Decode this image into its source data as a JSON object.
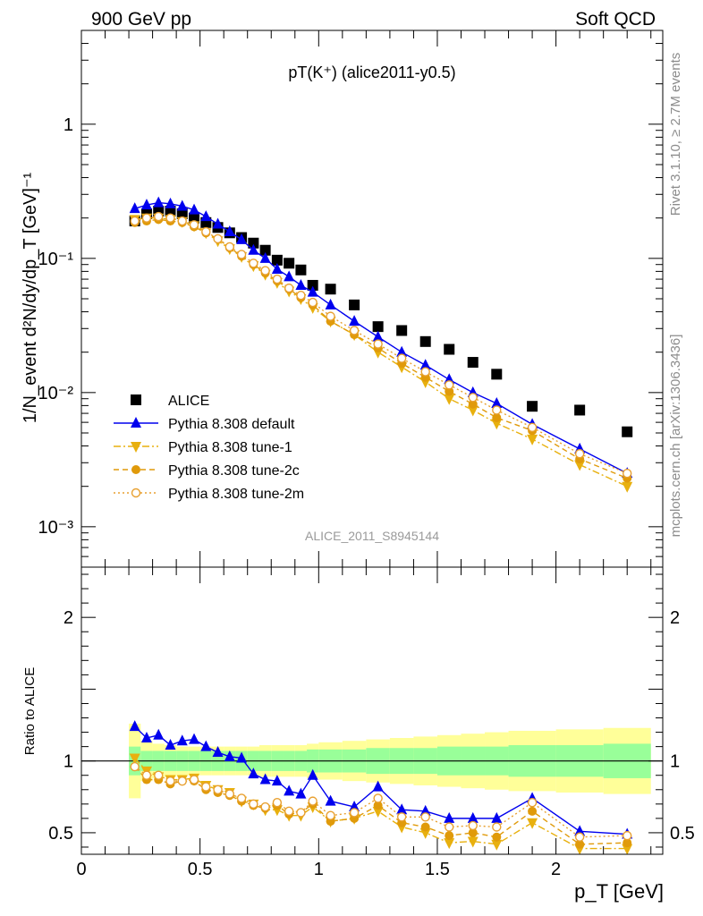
{
  "header": {
    "left": "900 GeV pp",
    "right": "Soft QCD"
  },
  "side_labels": {
    "rivet": "Rivet 3.1.10, ≥ 2.7M events",
    "mcplots": "mcplots.cern.ch [arXiv:1306.3436]"
  },
  "chart_data": [
    {
      "type": "scatter",
      "panel": "main",
      "title": "pT(K⁺) (alice2011-y0.5)",
      "watermark": "ALICE_2011_S8945144",
      "ylabel": "1/N_event d²N/dy/dp_T [GeV]⁻¹",
      "xlabel": "p_T [GeV]",
      "yscale": "log",
      "ylim": [
        0.0005,
        5
      ],
      "xlim": [
        0,
        2.45
      ],
      "y_tick_labels": [
        "10⁻³",
        "10⁻²",
        "10⁻¹",
        "1"
      ],
      "x_tick_labels": [
        "0",
        "0.5",
        "1",
        "1.5",
        "2"
      ],
      "legend_position": "bottom-left",
      "series": [
        {
          "name": "ALICE",
          "color": "#000000",
          "marker": "square",
          "x": [
            0.225,
            0.275,
            0.325,
            0.375,
            0.425,
            0.475,
            0.525,
            0.575,
            0.625,
            0.675,
            0.725,
            0.775,
            0.825,
            0.875,
            0.925,
            0.975,
            1.05,
            1.15,
            1.25,
            1.35,
            1.45,
            1.55,
            1.65,
            1.75,
            1.9,
            2.1,
            2.3
          ],
          "y": [
            0.19,
            0.215,
            0.225,
            0.225,
            0.215,
            0.2,
            0.185,
            0.17,
            0.155,
            0.143,
            0.13,
            0.115,
            0.097,
            0.092,
            0.082,
            0.063,
            0.059,
            0.045,
            0.031,
            0.029,
            0.024,
            0.021,
            0.0168,
            0.0137,
            0.0079,
            0.0074,
            0.0051
          ]
        },
        {
          "name": "Pythia 8.308 default",
          "color": "#0000ee",
          "marker": "triangle-up",
          "line": "solid",
          "x": [
            0.225,
            0.275,
            0.325,
            0.375,
            0.425,
            0.475,
            0.525,
            0.575,
            0.625,
            0.675,
            0.725,
            0.775,
            0.825,
            0.875,
            0.925,
            0.975,
            1.05,
            1.15,
            1.25,
            1.35,
            1.45,
            1.55,
            1.65,
            1.75,
            1.9,
            2.1,
            2.3
          ],
          "y": [
            0.235,
            0.25,
            0.26,
            0.255,
            0.245,
            0.23,
            0.205,
            0.18,
            0.158,
            0.138,
            0.115,
            0.1,
            0.083,
            0.073,
            0.063,
            0.056,
            0.045,
            0.034,
            0.026,
            0.02,
            0.016,
            0.0125,
            0.01,
            0.0083,
            0.0058,
            0.0038,
            0.0025
          ]
        },
        {
          "name": "Pythia 8.308 tune-1",
          "color": "#e8b00e",
          "marker": "triangle-down",
          "line": "dash-dot",
          "x": [
            0.225,
            0.275,
            0.325,
            0.375,
            0.425,
            0.475,
            0.525,
            0.575,
            0.625,
            0.675,
            0.725,
            0.775,
            0.825,
            0.875,
            0.925,
            0.975,
            1.05,
            1.15,
            1.25,
            1.35,
            1.45,
            1.55,
            1.65,
            1.75,
            1.9,
            2.1,
            2.3
          ],
          "y": [
            0.195,
            0.2,
            0.2,
            0.195,
            0.188,
            0.175,
            0.155,
            0.135,
            0.118,
            0.103,
            0.088,
            0.076,
            0.066,
            0.057,
            0.05,
            0.043,
            0.034,
            0.027,
            0.02,
            0.0155,
            0.012,
            0.009,
            0.0074,
            0.0059,
            0.0045,
            0.0029,
            0.002
          ]
        },
        {
          "name": "Pythia 8.308 tune-2c",
          "color": "#e09a0a",
          "marker": "circle",
          "line": "dashed",
          "x": [
            0.225,
            0.275,
            0.325,
            0.375,
            0.425,
            0.475,
            0.525,
            0.575,
            0.625,
            0.675,
            0.725,
            0.775,
            0.825,
            0.875,
            0.925,
            0.975,
            1.05,
            1.15,
            1.25,
            1.35,
            1.45,
            1.55,
            1.65,
            1.75,
            1.9,
            2.1,
            2.3
          ],
          "y": [
            0.185,
            0.19,
            0.195,
            0.19,
            0.185,
            0.172,
            0.155,
            0.14,
            0.12,
            0.104,
            0.09,
            0.078,
            0.068,
            0.059,
            0.051,
            0.045,
            0.034,
            0.027,
            0.0215,
            0.0165,
            0.013,
            0.0102,
            0.0082,
            0.0065,
            0.0052,
            0.0032,
            0.0023
          ]
        },
        {
          "name": "Pythia 8.308 tune-2m",
          "color": "#e8a030",
          "marker": "open-circle",
          "line": "dotted",
          "x": [
            0.225,
            0.275,
            0.325,
            0.375,
            0.425,
            0.475,
            0.525,
            0.575,
            0.625,
            0.675,
            0.725,
            0.775,
            0.825,
            0.875,
            0.925,
            0.975,
            1.05,
            1.15,
            1.25,
            1.35,
            1.45,
            1.55,
            1.65,
            1.75,
            1.9,
            2.1,
            2.3
          ],
          "y": [
            0.19,
            0.2,
            0.205,
            0.2,
            0.19,
            0.178,
            0.158,
            0.14,
            0.122,
            0.107,
            0.092,
            0.081,
            0.07,
            0.06,
            0.053,
            0.047,
            0.037,
            0.029,
            0.023,
            0.018,
            0.0143,
            0.0114,
            0.0092,
            0.0074,
            0.0055,
            0.0035,
            0.0025
          ]
        }
      ]
    },
    {
      "type": "scatter",
      "panel": "ratio",
      "ylabel": "Ratio to ALICE",
      "ylim": [
        0.35,
        2.35
      ],
      "xlim": [
        0,
        2.45
      ],
      "y_tick_labels": [
        "0.5",
        "1",
        "2"
      ],
      "bands": {
        "x_edges": [
          0.2,
          0.25,
          0.3,
          0.35,
          0.4,
          0.45,
          0.5,
          0.55,
          0.6,
          0.65,
          0.7,
          0.75,
          0.8,
          0.85,
          0.9,
          0.95,
          1.0,
          1.1,
          1.2,
          1.3,
          1.4,
          1.5,
          1.6,
          1.7,
          1.8,
          2.0,
          2.2,
          2.4
        ],
        "total_uncertainty": [
          0.26,
          0.14,
          0.12,
          0.11,
          0.1,
          0.1,
          0.1,
          0.1,
          0.1,
          0.1,
          0.1,
          0.11,
          0.11,
          0.11,
          0.11,
          0.12,
          0.13,
          0.14,
          0.15,
          0.16,
          0.17,
          0.18,
          0.19,
          0.2,
          0.21,
          0.22,
          0.23
        ],
        "stat_uncertainty": [
          0.1,
          0.07,
          0.07,
          0.07,
          0.07,
          0.07,
          0.07,
          0.07,
          0.07,
          0.07,
          0.07,
          0.07,
          0.07,
          0.07,
          0.07,
          0.08,
          0.08,
          0.08,
          0.09,
          0.09,
          0.09,
          0.1,
          0.1,
          0.1,
          0.11,
          0.11,
          0.12
        ]
      },
      "series": [
        {
          "name": "Pythia 8.308 default",
          "color": "#0000ee",
          "marker": "triangle-up",
          "line": "solid",
          "x": [
            0.225,
            0.275,
            0.325,
            0.375,
            0.425,
            0.475,
            0.525,
            0.575,
            0.625,
            0.675,
            0.725,
            0.775,
            0.825,
            0.875,
            0.925,
            0.975,
            1.05,
            1.15,
            1.25,
            1.35,
            1.45,
            1.55,
            1.65,
            1.75,
            1.9,
            2.1,
            2.3
          ],
          "y": [
            1.24,
            1.16,
            1.18,
            1.11,
            1.14,
            1.15,
            1.1,
            1.06,
            1.03,
            1.02,
            0.91,
            0.87,
            0.86,
            0.79,
            0.77,
            0.9,
            0.72,
            0.68,
            0.82,
            0.66,
            0.65,
            0.6,
            0.6,
            0.6,
            0.74,
            0.51,
            0.49
          ]
        },
        {
          "name": "Pythia 8.308 tune-1",
          "color": "#e8b00e",
          "marker": "triangle-down",
          "line": "dash-dot",
          "x": [
            0.225,
            0.275,
            0.325,
            0.375,
            0.425,
            0.475,
            0.525,
            0.575,
            0.625,
            0.675,
            0.725,
            0.775,
            0.825,
            0.875,
            0.925,
            0.975,
            1.05,
            1.15,
            1.25,
            1.35,
            1.45,
            1.55,
            1.65,
            1.75,
            1.9,
            2.1,
            2.3
          ],
          "y": [
            1.02,
            0.93,
            0.89,
            0.87,
            0.87,
            0.88,
            0.83,
            0.8,
            0.78,
            0.72,
            0.7,
            0.66,
            0.66,
            0.62,
            0.62,
            0.68,
            0.58,
            0.6,
            0.65,
            0.54,
            0.5,
            0.43,
            0.44,
            0.42,
            0.57,
            0.39,
            0.39
          ]
        },
        {
          "name": "Pythia 8.308 tune-2c",
          "color": "#e09a0a",
          "marker": "circle",
          "line": "dashed",
          "x": [
            0.225,
            0.275,
            0.325,
            0.375,
            0.425,
            0.475,
            0.525,
            0.575,
            0.625,
            0.675,
            0.725,
            0.775,
            0.825,
            0.875,
            0.925,
            0.975,
            1.05,
            1.15,
            1.25,
            1.35,
            1.45,
            1.55,
            1.65,
            1.75,
            1.9,
            2.1,
            2.3
          ],
          "y": [
            0.96,
            0.87,
            0.87,
            0.84,
            0.86,
            0.86,
            0.8,
            0.78,
            0.76,
            0.72,
            0.69,
            0.67,
            0.69,
            0.63,
            0.64,
            0.7,
            0.58,
            0.6,
            0.69,
            0.57,
            0.54,
            0.48,
            0.5,
            0.47,
            0.65,
            0.42,
            0.43
          ]
        },
        {
          "name": "Pythia 8.308 tune-2m",
          "color": "#e8a030",
          "marker": "open-circle",
          "line": "dotted",
          "x": [
            0.225,
            0.275,
            0.325,
            0.375,
            0.425,
            0.475,
            0.525,
            0.575,
            0.625,
            0.675,
            0.725,
            0.775,
            0.825,
            0.875,
            0.925,
            0.975,
            1.05,
            1.15,
            1.25,
            1.35,
            1.45,
            1.55,
            1.65,
            1.75,
            1.9,
            2.1,
            2.3
          ],
          "y": [
            0.96,
            0.9,
            0.9,
            0.86,
            0.86,
            0.87,
            0.82,
            0.8,
            0.77,
            0.74,
            0.7,
            0.68,
            0.71,
            0.65,
            0.64,
            0.72,
            0.62,
            0.64,
            0.74,
            0.61,
            0.61,
            0.54,
            0.55,
            0.54,
            0.71,
            0.47,
            0.48
          ]
        }
      ]
    }
  ]
}
